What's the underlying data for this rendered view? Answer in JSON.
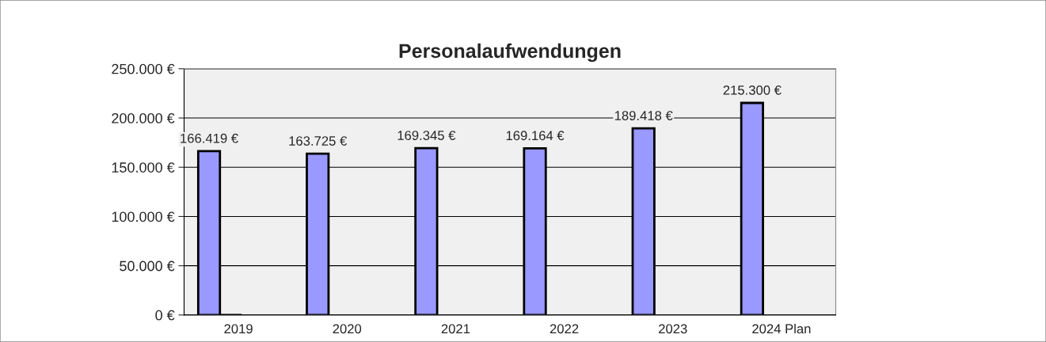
{
  "chart_data": {
    "type": "bar",
    "title": "Personalaufwendungen",
    "categories": [
      "2019",
      "2020",
      "2021",
      "2022",
      "2023",
      "2024 Plan"
    ],
    "series": [
      {
        "color": "#9999ff",
        "values": [
          166419,
          163725,
          169345,
          169164,
          189418,
          215300
        ],
        "value_labels": [
          "166.419 €",
          "163.725 €",
          "169.345 €",
          "169.164 €",
          "189.418 €",
          "215.300 €"
        ]
      },
      {
        "color": "#000000",
        "values": [
          0,
          null,
          null,
          null,
          null,
          null
        ]
      }
    ],
    "ylim": [
      0,
      250000
    ],
    "yticks": [
      {
        "value": 0,
        "label": "0 €"
      },
      {
        "value": 50000,
        "label": "50.000 €"
      },
      {
        "value": 100000,
        "label": "100.000 €"
      },
      {
        "value": 150000,
        "label": "150.000 €"
      },
      {
        "value": 200000,
        "label": "200.000 €"
      },
      {
        "value": 250000,
        "label": "250.000 €"
      }
    ],
    "grid": "y"
  }
}
